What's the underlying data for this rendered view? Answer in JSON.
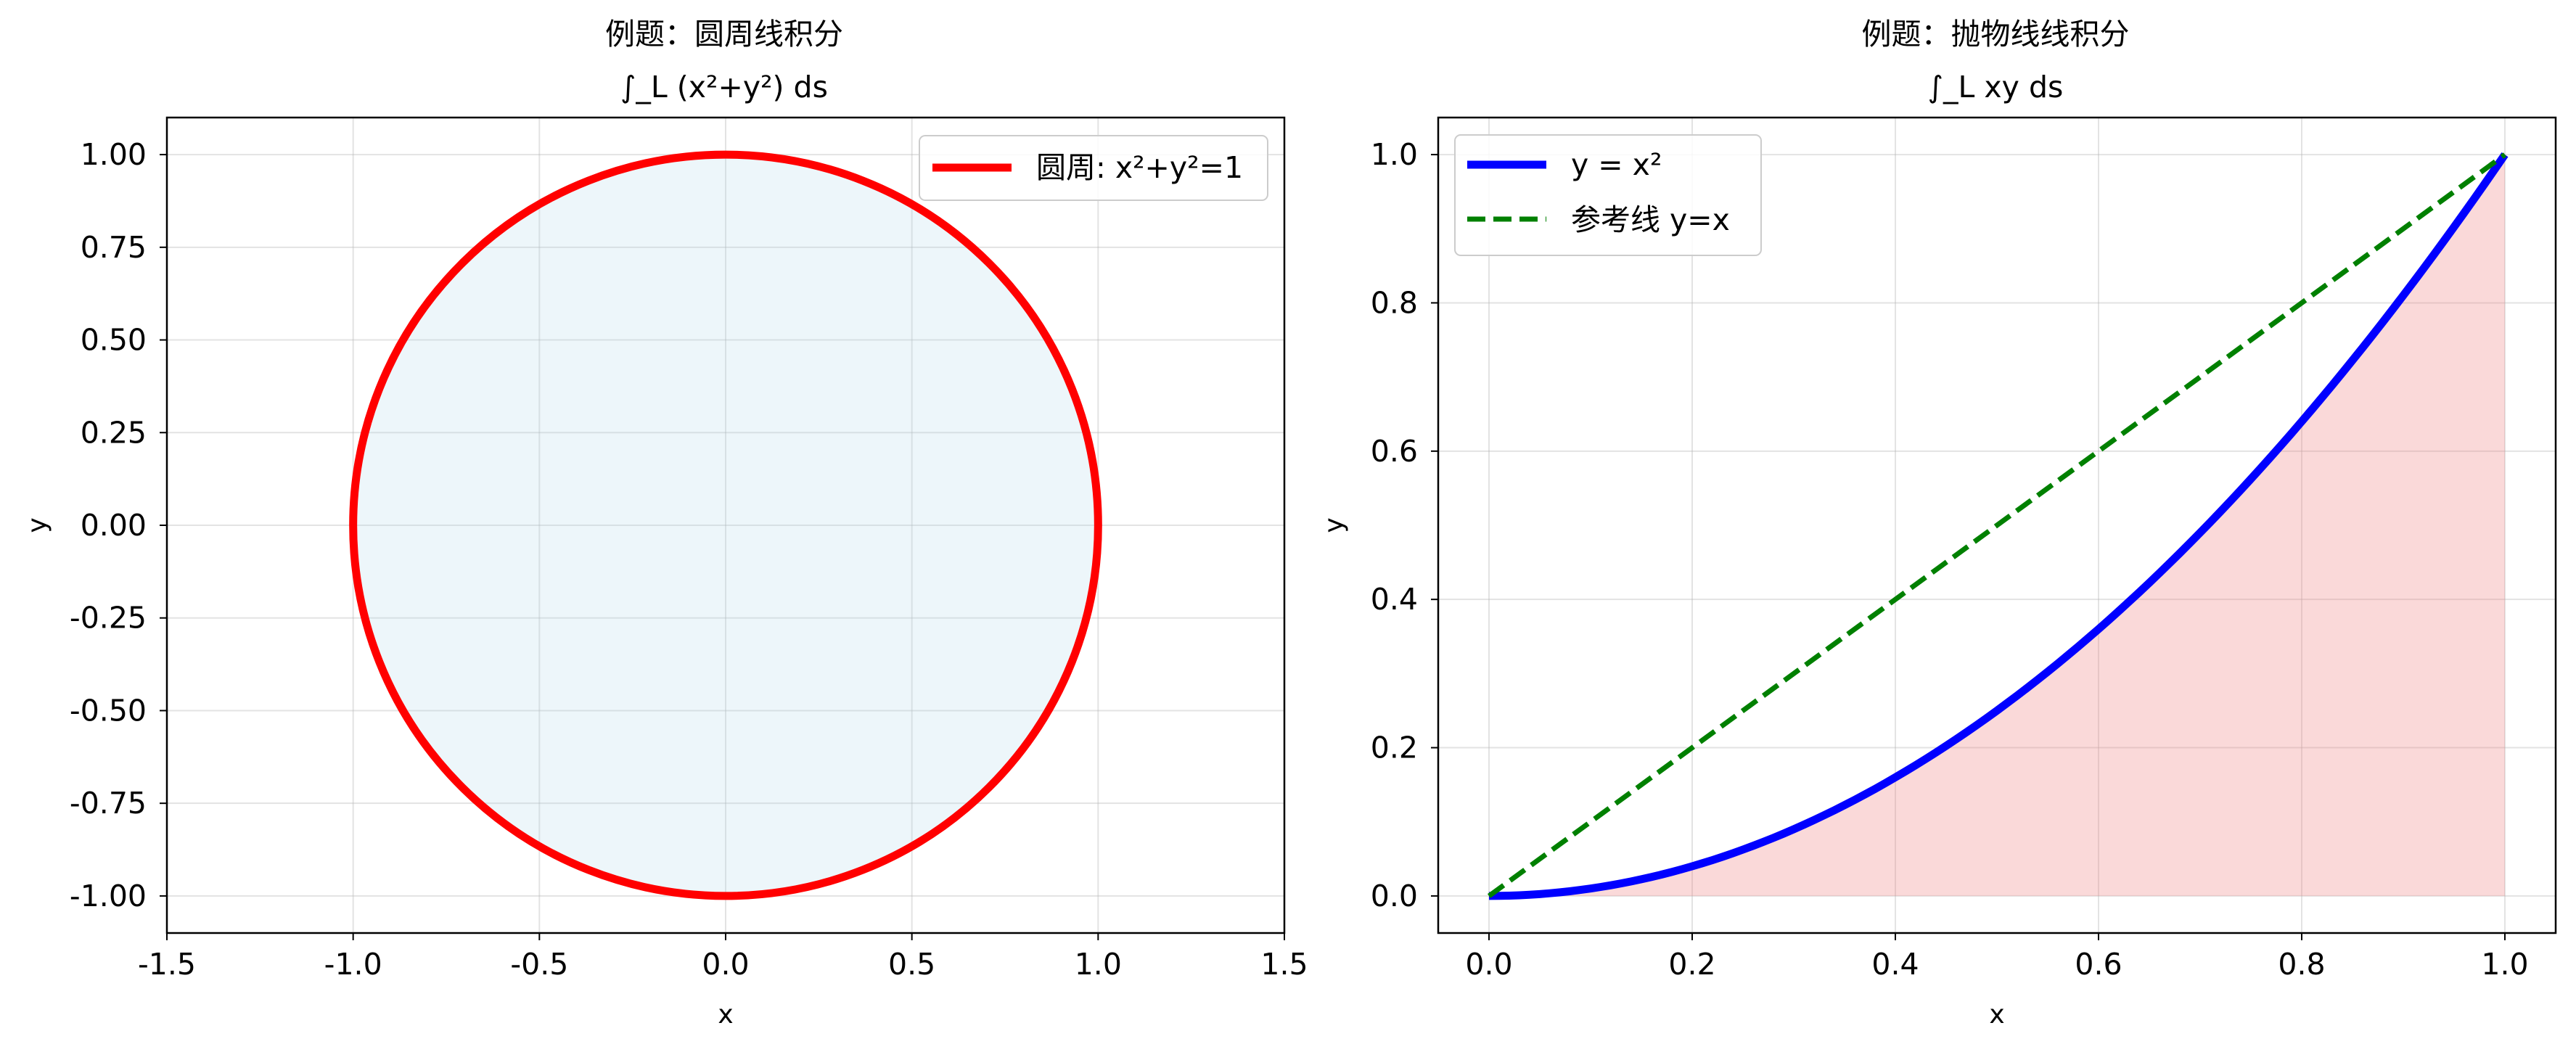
{
  "chart_data": [
    {
      "type": "line",
      "title": "例题：圆周线积分",
      "subtitle": "∫_L (x²+y²) ds",
      "xlabel": "x",
      "ylabel": "y",
      "xlim": [
        -1.5,
        1.5
      ],
      "ylim": [
        -1.1,
        1.1
      ],
      "xticks": [
        -1.5,
        -1.0,
        -0.5,
        0.0,
        0.5,
        1.0,
        1.5
      ],
      "xtick_labels": [
        "-1.5",
        "-1.0",
        "-0.5",
        "0.0",
        "0.5",
        "1.0",
        "1.5"
      ],
      "yticks": [
        -1.0,
        -0.75,
        -0.5,
        -0.25,
        0.0,
        0.25,
        0.5,
        0.75,
        1.0
      ],
      "ytick_labels": [
        "-1.00",
        "-0.75",
        "-0.50",
        "-0.25",
        "0.00",
        "0.25",
        "0.50",
        "0.75",
        "1.00"
      ],
      "grid": true,
      "legend_position": "top-right",
      "series": [
        {
          "name": "圆周: x²+y²=1",
          "kind": "circle",
          "center": [
            0,
            0
          ],
          "radius": 1,
          "color": "#ff0000",
          "fill_color": "#add8e6"
        }
      ]
    },
    {
      "type": "line",
      "title": "例题：抛物线线积分",
      "subtitle": "∫_L xy ds",
      "xlabel": "x",
      "ylabel": "y",
      "xlim": [
        -0.05,
        1.05
      ],
      "ylim": [
        -0.05,
        1.05
      ],
      "xticks": [
        0.0,
        0.2,
        0.4,
        0.6,
        0.8,
        1.0
      ],
      "xtick_labels": [
        "0.0",
        "0.2",
        "0.4",
        "0.6",
        "0.8",
        "1.0"
      ],
      "yticks": [
        0.0,
        0.2,
        0.4,
        0.6,
        0.8,
        1.0
      ],
      "ytick_labels": [
        "0.0",
        "0.2",
        "0.4",
        "0.6",
        "0.8",
        "1.0"
      ],
      "grid": true,
      "legend_position": "top-left",
      "series": [
        {
          "name": "y = x²",
          "x": [
            0.0,
            0.1,
            0.2,
            0.3,
            0.4,
            0.5,
            0.6,
            0.7,
            0.8,
            0.9,
            1.0
          ],
          "y": [
            0.0,
            0.01,
            0.04,
            0.09,
            0.16,
            0.25,
            0.36,
            0.49,
            0.64,
            0.81,
            1.0
          ],
          "color": "#0000ff",
          "style": "solid",
          "fill_under": "#f08080"
        },
        {
          "name": "参考线 y=x",
          "x": [
            0.0,
            1.0
          ],
          "y": [
            0.0,
            1.0
          ],
          "color": "#008000",
          "style": "dashed"
        }
      ]
    }
  ]
}
